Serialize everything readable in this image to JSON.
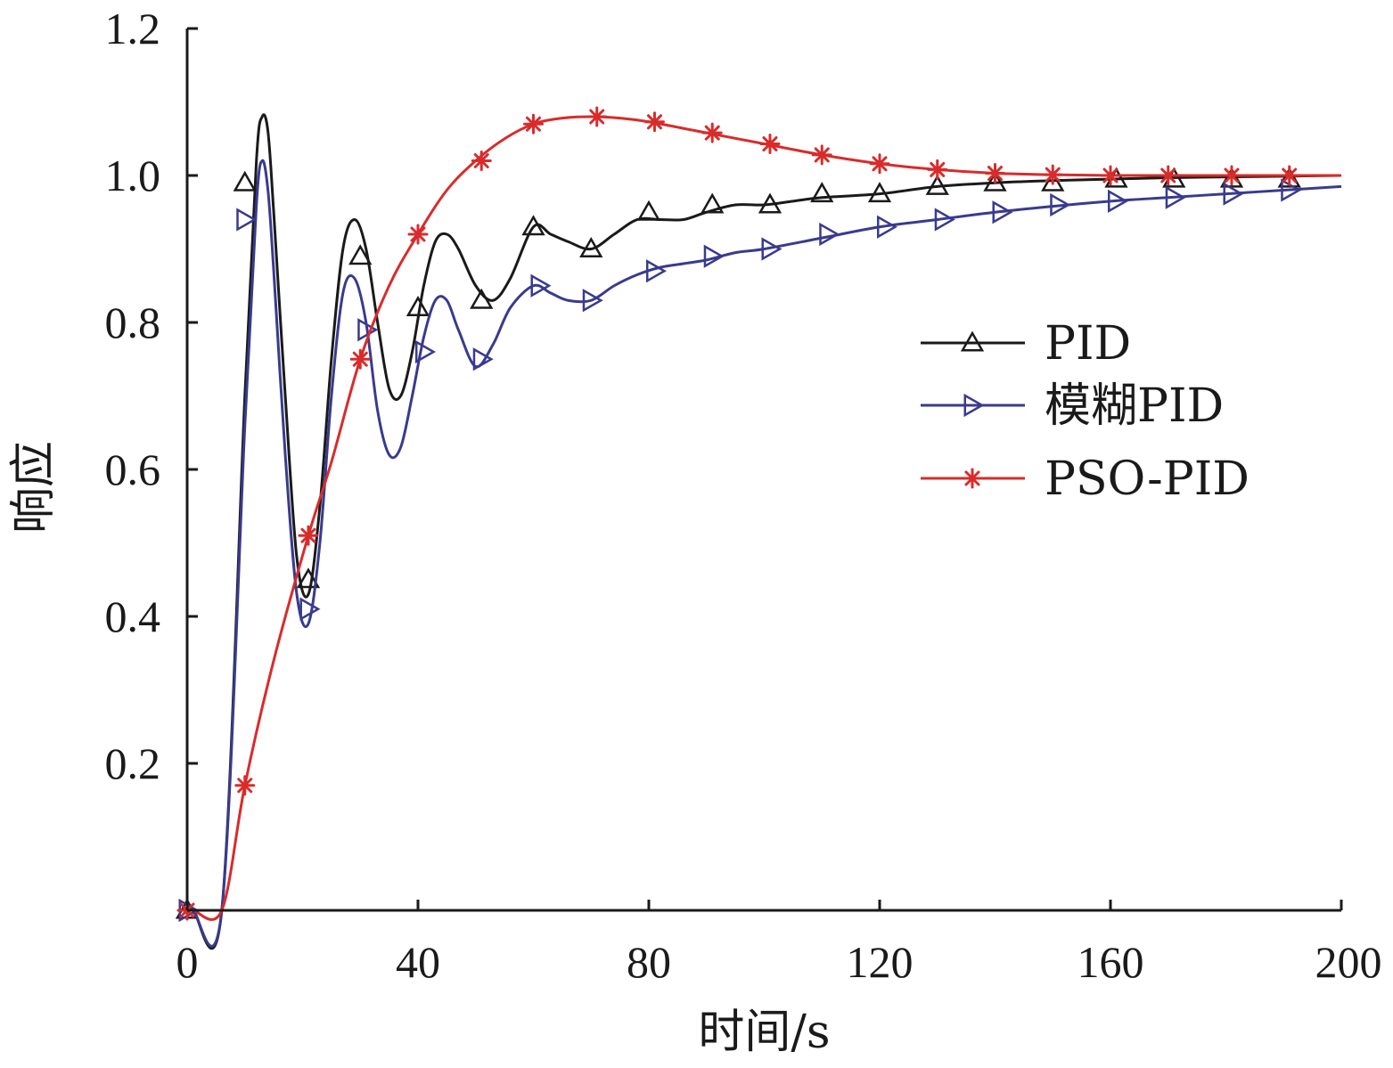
{
  "chart_data": {
    "type": "line",
    "title": "",
    "xlabel": "时间/s",
    "ylabel": "响应",
    "xlim": [
      0,
      200
    ],
    "ylim": [
      0,
      1.2
    ],
    "xticks": [
      0,
      40,
      80,
      120,
      160,
      200
    ],
    "xtick_labels": [
      "0",
      "40",
      "80",
      "120",
      "160",
      "200"
    ],
    "yticks": [
      0.2,
      0.4,
      0.6,
      0.8,
      1.0,
      1.2
    ],
    "ytick_labels": [
      "0.2",
      "0.4",
      "0.6",
      "0.8",
      "1.0",
      "1.2"
    ],
    "grid": false,
    "legend_position": "right",
    "series": [
      {
        "name": "PID",
        "color": "#1a1a1a",
        "marker": "triangle-up",
        "curve_x": [
          0,
          1,
          6,
          10,
          12,
          13,
          14,
          15,
          17,
          19,
          21,
          23,
          25,
          27,
          29,
          31,
          33,
          35,
          37,
          39,
          41,
          43,
          45,
          47,
          50,
          53,
          56,
          60,
          63,
          66,
          70,
          74,
          78,
          82,
          86,
          90,
          95,
          100,
          105,
          110,
          120,
          130,
          140,
          150,
          160,
          170,
          180,
          190,
          200
        ],
        "curve_y": [
          0,
          0,
          0,
          0.7,
          1.02,
          1.08,
          1.06,
          0.95,
          0.7,
          0.48,
          0.43,
          0.55,
          0.75,
          0.9,
          0.94,
          0.9,
          0.8,
          0.71,
          0.7,
          0.76,
          0.85,
          0.91,
          0.92,
          0.9,
          0.85,
          0.83,
          0.86,
          0.93,
          0.92,
          0.91,
          0.9,
          0.92,
          0.94,
          0.94,
          0.94,
          0.95,
          0.96,
          0.96,
          0.965,
          0.97,
          0.975,
          0.985,
          0.99,
          0.993,
          0.995,
          0.997,
          0.998,
          0.999,
          1.0
        ],
        "marker_x": [
          0,
          10,
          21,
          30,
          40,
          51,
          60,
          70,
          80,
          91,
          101,
          110,
          120,
          130,
          140,
          150,
          161,
          171,
          181,
          191
        ],
        "marker_y": [
          0,
          0.99,
          0.45,
          0.89,
          0.82,
          0.83,
          0.93,
          0.9,
          0.95,
          0.96,
          0.96,
          0.975,
          0.975,
          0.985,
          0.99,
          0.99,
          0.995,
          0.995,
          0.995,
          0.995
        ]
      },
      {
        "name": "模糊PID",
        "color": "#3a3a8f",
        "marker": "triangle-right",
        "curve_x": [
          0,
          1,
          6,
          10,
          12,
          13,
          14,
          15,
          17,
          19,
          21,
          23,
          25,
          27,
          29,
          31,
          33,
          35,
          37,
          39,
          41,
          43,
          45,
          47,
          50,
          53,
          56,
          60,
          63,
          66,
          70,
          74,
          78,
          82,
          86,
          90,
          95,
          100,
          110,
          120,
          130,
          140,
          150,
          160,
          170,
          180,
          190,
          200
        ],
        "curve_y": [
          0,
          0,
          0,
          0.66,
          0.96,
          1.02,
          0.98,
          0.87,
          0.62,
          0.43,
          0.39,
          0.5,
          0.7,
          0.84,
          0.86,
          0.8,
          0.68,
          0.62,
          0.63,
          0.7,
          0.78,
          0.83,
          0.83,
          0.79,
          0.74,
          0.77,
          0.82,
          0.85,
          0.84,
          0.83,
          0.83,
          0.85,
          0.865,
          0.875,
          0.88,
          0.885,
          0.895,
          0.9,
          0.915,
          0.93,
          0.94,
          0.95,
          0.958,
          0.965,
          0.97,
          0.975,
          0.98,
          0.985
        ],
        "marker_x": [
          0,
          10,
          21,
          31,
          41,
          51,
          61,
          70,
          81,
          91,
          101,
          111,
          121,
          131,
          141,
          151,
          161,
          171,
          181,
          191
        ],
        "marker_y": [
          0,
          0.94,
          0.41,
          0.79,
          0.76,
          0.75,
          0.85,
          0.83,
          0.87,
          0.89,
          0.9,
          0.92,
          0.93,
          0.94,
          0.95,
          0.96,
          0.965,
          0.97,
          0.975,
          0.98
        ]
      },
      {
        "name": "PSO-PID",
        "color": "#d92b2b",
        "marker": "asterisk",
        "curve_x": [
          0,
          1,
          6,
          10,
          15,
          21,
          25,
          30,
          35,
          40,
          45,
          50,
          55,
          60,
          65,
          70,
          75,
          80,
          90,
          100,
          110,
          120,
          130,
          140,
          150,
          160,
          170,
          180,
          190,
          200
        ],
        "curve_y": [
          0,
          0,
          0,
          0.17,
          0.34,
          0.51,
          0.61,
          0.75,
          0.85,
          0.92,
          0.98,
          1.02,
          1.05,
          1.07,
          1.078,
          1.08,
          1.078,
          1.073,
          1.058,
          1.043,
          1.028,
          1.016,
          1.008,
          1.003,
          1.001,
          1.0,
          1.0,
          1.0,
          1.0,
          1.0
        ],
        "marker_x": [
          0,
          10,
          21,
          30,
          40,
          51,
          60,
          71,
          81,
          91,
          101,
          110,
          120,
          130,
          140,
          150,
          160,
          170,
          181,
          191
        ],
        "marker_y": [
          0,
          0.17,
          0.51,
          0.75,
          0.92,
          1.02,
          1.07,
          1.08,
          1.073,
          1.058,
          1.043,
          1.028,
          1.016,
          1.008,
          1.003,
          1.001,
          1.0,
          1.0,
          1.0,
          1.0
        ]
      }
    ]
  }
}
